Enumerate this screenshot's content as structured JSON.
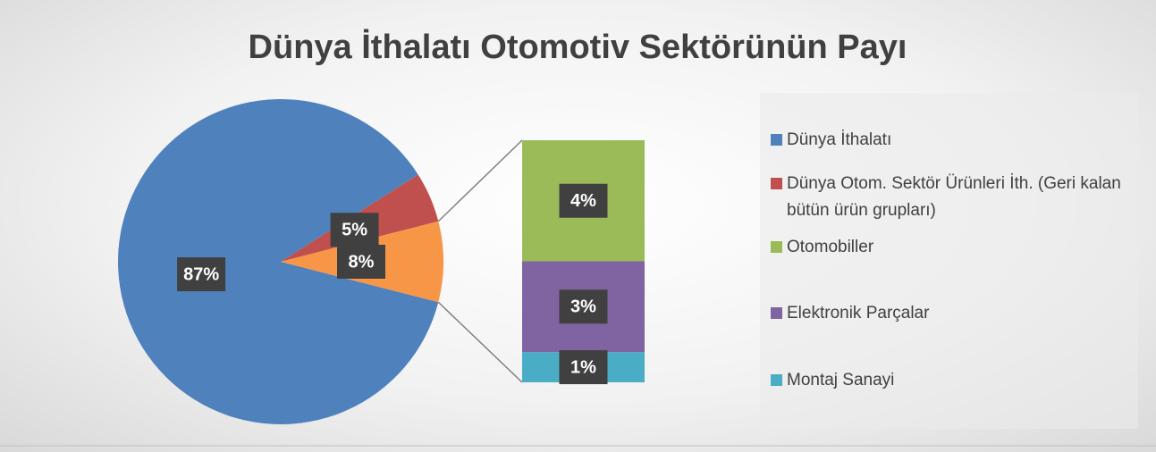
{
  "chart_data": {
    "type": "pie",
    "title": "Dünya İthalatı Otomotiv Sektörünün Payı",
    "categories": [
      "Dünya İthalatı",
      "Dünya Otom. Sektör Ürünleri İth. (Geri kalan bütün ürün grupları)",
      null
    ],
    "values": [
      87,
      5,
      8
    ],
    "value_labels": [
      "87%",
      "5%",
      "8%"
    ],
    "colors": [
      "#4f81bd",
      "#c0504d",
      "#f79646"
    ],
    "breakout": {
      "categories": [
        "Otomobiller",
        "Elektronik Parçalar",
        "Montaj Sanayi"
      ],
      "values": [
        4,
        3,
        1
      ],
      "value_labels": [
        "4%",
        "3%",
        "1%"
      ],
      "colors": [
        "#9bbb59",
        "#8064a2",
        "#4bacc6"
      ]
    },
    "legend": "right"
  }
}
